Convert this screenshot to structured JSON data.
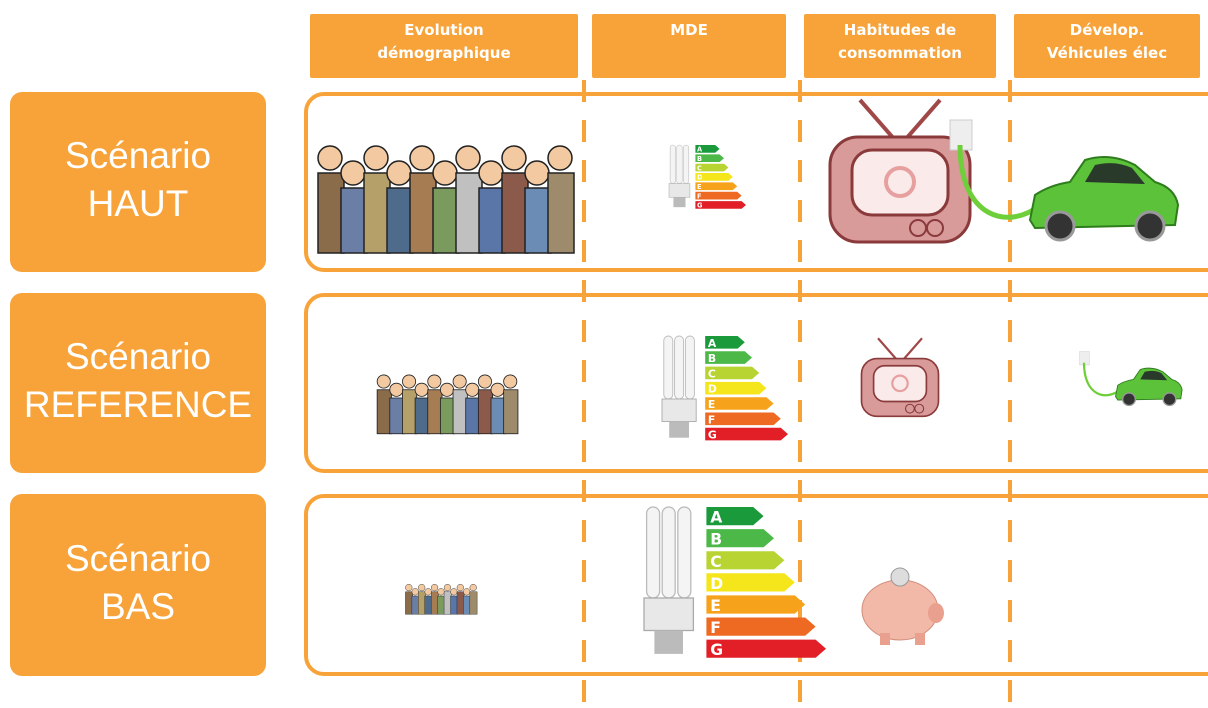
{
  "header": {
    "columns": [
      [
        "Evolution",
        "démographique"
      ],
      [
        "MDE"
      ],
      [
        "Habitudes de",
        "consommation"
      ],
      [
        "Dévelop.",
        "Véhicules élec"
      ]
    ]
  },
  "rows": [
    [
      "Scénario",
      "HAUT"
    ],
    [
      "Scénario",
      "REFERENCE"
    ],
    [
      "Scénario",
      "BAS"
    ]
  ],
  "energy_label_letters": [
    "A",
    "B",
    "C",
    "D",
    "E",
    "F",
    "G"
  ]
}
